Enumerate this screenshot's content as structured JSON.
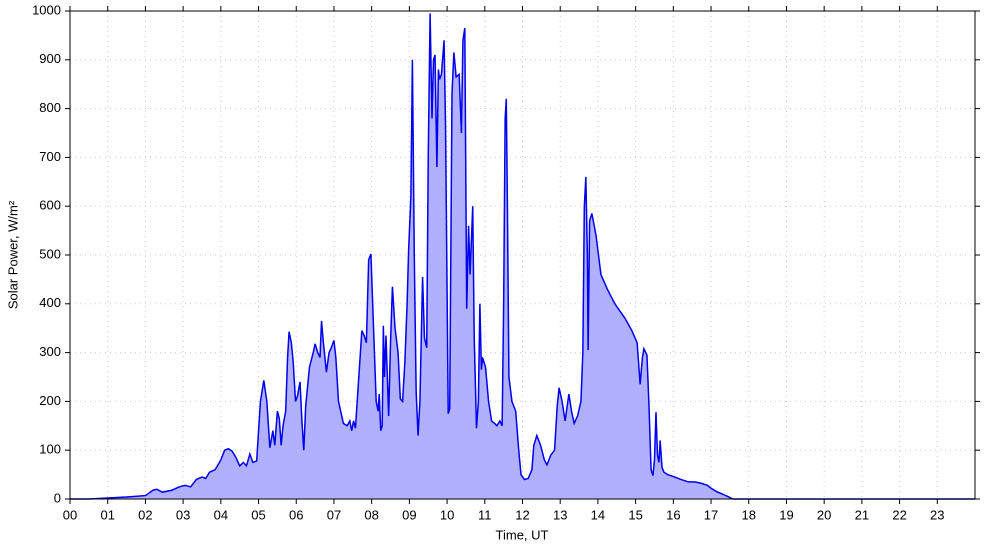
{
  "chart_data": {
    "type": "area",
    "x_label": "Time, UT",
    "y_label": "Solar Power, W/m²",
    "color": "#0000ee",
    "fill": "#b0b0ff",
    "grid": true,
    "xlim": [
      0,
      24
    ],
    "ylim": [
      0,
      1000
    ],
    "xticks": [
      {
        "value": 0,
        "label": "00"
      },
      {
        "value": 1,
        "label": "01"
      },
      {
        "value": 2,
        "label": "02"
      },
      {
        "value": 3,
        "label": "03"
      },
      {
        "value": 4,
        "label": "04"
      },
      {
        "value": 5,
        "label": "05"
      },
      {
        "value": 6,
        "label": "06"
      },
      {
        "value": 7,
        "label": "07"
      },
      {
        "value": 8,
        "label": "08"
      },
      {
        "value": 9,
        "label": "09"
      },
      10,
      11,
      12,
      13,
      14,
      15,
      16,
      17,
      18,
      19,
      20,
      21,
      22,
      23
    ],
    "yticks": [
      0,
      100,
      200,
      300,
      400,
      500,
      600,
      700,
      800,
      900,
      1000
    ],
    "x": [
      0,
      0.5,
      1,
      1.5,
      2,
      2.2,
      2.3,
      2.45,
      2.7,
      2.9,
      3.05,
      3.2,
      3.35,
      3.5,
      3.6,
      3.7,
      3.85,
      4.0,
      4.1,
      4.2,
      4.3,
      4.4,
      4.5,
      4.6,
      4.68,
      4.77,
      4.85,
      4.95,
      5.05,
      5.14,
      5.22,
      5.3,
      5.38,
      5.43,
      5.5,
      5.55,
      5.6,
      5.65,
      5.72,
      5.77,
      5.81,
      5.87,
      5.92,
      5.98,
      6.03,
      6.1,
      6.15,
      6.2,
      6.25,
      6.35,
      6.45,
      6.5,
      6.57,
      6.63,
      6.67,
      6.72,
      6.8,
      6.87,
      6.93,
      7.0,
      7.05,
      7.12,
      7.25,
      7.35,
      7.42,
      7.47,
      7.52,
      7.57,
      7.65,
      7.74,
      7.8,
      7.86,
      7.92,
      7.98,
      8.05,
      8.12,
      8.17,
      8.2,
      8.24,
      8.28,
      8.31,
      8.34,
      8.38,
      8.45,
      8.5,
      8.55,
      8.62,
      8.7,
      8.76,
      8.82,
      8.88,
      8.94,
      8.98,
      9.04,
      9.08,
      9.13,
      9.18,
      9.23,
      9.28,
      9.35,
      9.4,
      9.46,
      9.5,
      9.55,
      9.6,
      9.64,
      9.68,
      9.73,
      9.77,
      9.8,
      9.85,
      9.92,
      9.96,
      10.03,
      10.07,
      10.13,
      10.18,
      10.24,
      10.32,
      10.38,
      10.42,
      10.47,
      10.52,
      10.57,
      10.61,
      10.68,
      10.72,
      10.78,
      10.83,
      10.87,
      10.91,
      10.94,
      11.02,
      11.1,
      11.18,
      11.26,
      11.32,
      11.4,
      11.46,
      11.5,
      11.54,
      11.57,
      11.6,
      11.64,
      11.72,
      11.82,
      11.9,
      11.96,
      12.05,
      12.15,
      12.25,
      12.3,
      12.38,
      12.48,
      12.58,
      12.65,
      12.75,
      12.85,
      12.92,
      12.97,
      13.05,
      13.13,
      13.23,
      13.3,
      13.37,
      13.46,
      13.55,
      13.6,
      13.64,
      13.68,
      13.72,
      13.74,
      13.78,
      13.84,
      13.95,
      14.08,
      14.25,
      14.45,
      14.72,
      14.9,
      15.04,
      15.12,
      15.18,
      15.22,
      15.3,
      15.35,
      15.41,
      15.46,
      15.5,
      15.54,
      15.58,
      15.62,
      15.65,
      15.7,
      15.75,
      15.85,
      16.04,
      16.2,
      16.4,
      16.57,
      16.75,
      16.9,
      17.0,
      17.15,
      17.3,
      17.45,
      17.58,
      24
    ],
    "values": [
      0,
      0,
      2,
      4,
      7,
      18,
      20,
      14,
      18,
      25,
      28,
      25,
      40,
      45,
      42,
      55,
      60,
      80,
      100,
      103,
      98,
      85,
      68,
      75,
      68,
      92,
      75,
      78,
      200,
      243,
      200,
      105,
      140,
      110,
      180,
      165,
      110,
      150,
      180,
      290,
      343,
      320,
      280,
      200,
      210,
      240,
      160,
      100,
      190,
      270,
      300,
      318,
      300,
      290,
      365,
      320,
      260,
      300,
      310,
      325,
      290,
      200,
      155,
      150,
      160,
      140,
      160,
      145,
      240,
      345,
      335,
      320,
      490,
      502,
      350,
      200,
      180,
      215,
      140,
      150,
      355,
      250,
      335,
      170,
      320,
      435,
      350,
      300,
      205,
      200,
      280,
      400,
      510,
      620,
      900,
      500,
      220,
      130,
      200,
      455,
      330,
      310,
      700,
      995,
      780,
      900,
      910,
      680,
      880,
      860,
      870,
      940,
      760,
      175,
      185,
      830,
      915,
      865,
      870,
      750,
      940,
      965,
      390,
      560,
      460,
      600,
      330,
      145,
      200,
      400,
      265,
      290,
      270,
      200,
      160,
      155,
      150,
      160,
      150,
      400,
      780,
      820,
      600,
      250,
      200,
      180,
      100,
      50,
      40,
      42,
      60,
      110,
      130,
      110,
      80,
      70,
      90,
      100,
      190,
      228,
      200,
      160,
      215,
      180,
      155,
      170,
      200,
      300,
      600,
      660,
      500,
      305,
      570,
      585,
      540,
      460,
      430,
      400,
      370,
      345,
      320,
      235,
      290,
      308,
      295,
      200,
      60,
      48,
      80,
      178,
      90,
      75,
      120,
      65,
      55,
      50,
      45,
      40,
      35,
      35,
      32,
      28,
      22,
      15,
      10,
      5,
      0,
      0
    ]
  }
}
